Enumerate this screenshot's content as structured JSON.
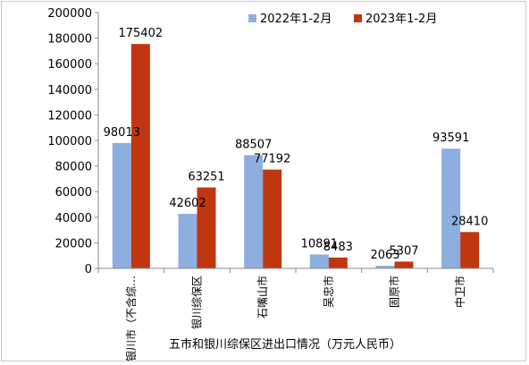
{
  "chart_data": {
    "type": "bar",
    "title": "",
    "xlabel": "五市和银川综保区进出口情况（万元人民币）",
    "ylabel": "",
    "ylim": [
      0,
      200000
    ],
    "yticks": [
      "0",
      "20000",
      "40000",
      "60000",
      "80000",
      "100000",
      "120000",
      "140000",
      "160000",
      "180000",
      "200000"
    ],
    "categories": [
      "银川市（不含综…",
      "银川综保区",
      "石嘴山市",
      "吴忠市",
      "固原市",
      "中卫市"
    ],
    "series": [
      {
        "name": "2022年1-2月",
        "color": "#8eaee0",
        "values": [
          98013,
          42602,
          88507,
          10891,
          2063,
          93591
        ]
      },
      {
        "name": "2023年1-2月",
        "color": "#c0360f",
        "values": [
          175402,
          63251,
          77192,
          8483,
          5307,
          28410
        ]
      }
    ],
    "grid": false,
    "legend": "top-right"
  }
}
